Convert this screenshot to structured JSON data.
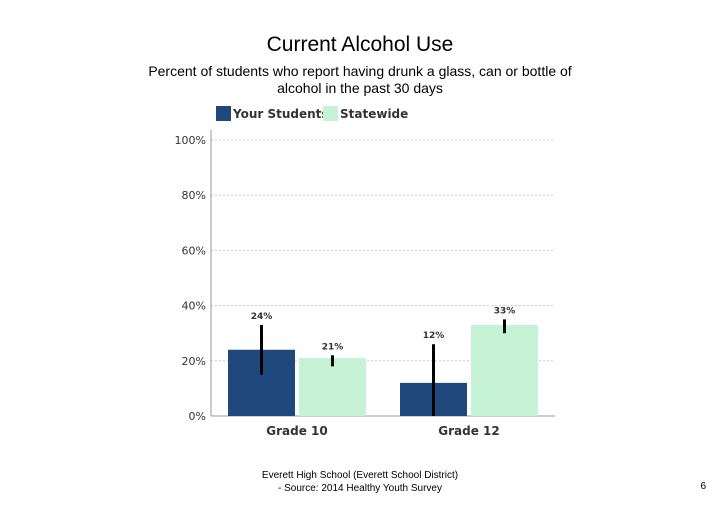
{
  "title": "Current Alcohol Use",
  "subtitle": "Percent of students who report having drunk a glass, can or bottle of alcohol in the past 30 days",
  "footer": {
    "line1": "Everett High School (Everett School District)",
    "line2": "- Source: 2014 Healthy Youth Survey"
  },
  "page_number": "6",
  "colors": {
    "your_students": "#1f497d",
    "statewide": "#c6f2d6",
    "error_bar": "#000000",
    "grid": "#cccccc",
    "axis": "#999999"
  },
  "chart_data": {
    "type": "bar",
    "title": "Current Alcohol Use",
    "xlabel": "",
    "ylabel": "",
    "ylim": [
      0,
      100
    ],
    "yticks": [
      0,
      20,
      40,
      60,
      80,
      100
    ],
    "ytick_labels": [
      "0%",
      "20%",
      "40%",
      "60%",
      "80%",
      "100%"
    ],
    "categories": [
      "Grade 10",
      "Grade 12"
    ],
    "legend_position": "top",
    "grid": true,
    "series": [
      {
        "name": "Your Students",
        "values": [
          24,
          12
        ],
        "labels": [
          "24%",
          "12%"
        ],
        "error_low": [
          15,
          0
        ],
        "error_high": [
          33,
          26
        ]
      },
      {
        "name": "Statewide",
        "values": [
          21,
          33
        ],
        "labels": [
          "21%",
          "33%"
        ],
        "error_low": [
          18,
          30
        ],
        "error_high": [
          22,
          35
        ]
      }
    ]
  }
}
